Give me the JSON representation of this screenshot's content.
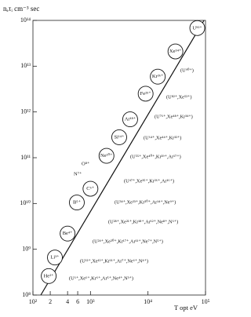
{
  "chart_data": {
    "type": "scatter",
    "y_label": "nₑτᵢ cm⁻³ sec",
    "x_label": "T opt eV",
    "log_x": true,
    "log_y": true,
    "xlim": [
      100,
      100000
    ],
    "ylim": [
      100000000,
      100000000000000
    ],
    "xticks": [
      {
        "value": 100,
        "label": "10²"
      },
      {
        "value": 200,
        "label": "2"
      },
      {
        "value": 400,
        "label": "4"
      },
      {
        "value": 600,
        "label": "6"
      },
      {
        "value": 1000,
        "label": "10³"
      },
      {
        "value": 10000,
        "label": "10⁴"
      },
      {
        "value": 100000,
        "label": "10⁵"
      }
    ],
    "yticks": [
      {
        "value": 100000000,
        "label": "10⁸"
      },
      {
        "value": 1000000000,
        "label": "10⁹"
      },
      {
        "value": 10000000000,
        "label": "10¹⁰"
      },
      {
        "value": 100000000000,
        "label": "10¹¹"
      },
      {
        "value": 1000000000000,
        "label": "10¹²"
      },
      {
        "value": 10000000000000,
        "label": "10¹³"
      },
      {
        "value": 100000000000000,
        "label": "10¹⁴"
      }
    ],
    "line": {
      "x": [
        137,
        94000
      ],
      "y": [
        100000000,
        100000000000000
      ]
    },
    "points": [
      {
        "label": "He²⁺",
        "x": 188,
        "y": 260000000
      },
      {
        "label": "Li³⁺",
        "x": 241,
        "y": 660000000
      },
      {
        "label": "Be⁴⁺",
        "x": 400,
        "y": 2200000000
      },
      {
        "label": "B⁵⁺",
        "x": 580,
        "y": 10500000000
      },
      {
        "label": "C⁶⁺",
        "x": 1000,
        "y": 21000000000
      },
      {
        "label": "Ne¹⁰⁺",
        "x": 1900,
        "y": 110000000000
      },
      {
        "label": "Si¹⁴⁺",
        "x": 3160,
        "y": 280000000000
      },
      {
        "label": "Ar¹⁸⁺",
        "x": 4900,
        "y": 690000000000
      },
      {
        "label": "Fe²⁵⁺",
        "x": 9100,
        "y": 2500000000000
      },
      {
        "label": "Kr³⁶⁺",
        "x": 14800,
        "y": 5900000000000
      },
      {
        "label": "Xe⁵⁴⁺",
        "x": 30000,
        "y": 21000000000000
      },
      {
        "label": "U⁹²⁺",
        "x": 72000,
        "y": 68000000000000
      }
    ],
    "annotations": [
      "O⁸⁺",
      "N⁷⁺",
      "(U⁹⁰⁺)",
      "(U⁸²⁺,Xe⁵²⁺)",
      "(U⁷⁶⁺,Xe⁴⁸⁺,Kr³⁴⁺)",
      "(U⁶⁴⁺,Xe⁴⁴⁺,Kr³²⁺)",
      "(U⁵⁵⁺,Xe⁴⁰⁺,Kr²⁹⁺,Ar¹⁷⁺)",
      "(U⁴⁷⁺,Xe³⁵⁺,Kr²⁶⁺,Ar¹⁶⁺)",
      "(U³⁴⁺,Xe²³⁺,Kr²⁰⁺,Ar¹⁴⁺,Ne⁹⁺)",
      "(U²⁸⁺,Xe²¹⁺,Kr¹⁸⁺,Ar¹²⁺,Ne⁸⁺,N⁶⁺)",
      "(U²⁴⁺,Xe²⁰⁺,Kr¹⁷⁺,Ar¹¹⁺,Ne⁷⁺,N⁵⁺)",
      "(U¹²⁺,Xe¹²⁺,Kr¹¹⁺,Ar⁷⁺,Ne⁶⁺,N⁴⁺)",
      "(U⁶⁺,Xe⁶⁺,Kr⁶⁺,Ar⁵⁺,Ne⁴⁺,N³⁺)"
    ]
  }
}
